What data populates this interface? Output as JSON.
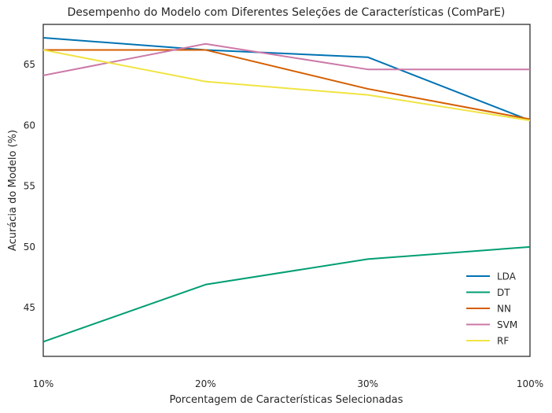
{
  "chart_data": {
    "type": "line",
    "title": "Desempenho do Modelo com Diferentes Seleções de Características (ComParE)",
    "xlabel": "Porcentagem de Características Selecionadas",
    "ylabel": "Acurácia do Modelo (%)",
    "categories": [
      "10%",
      "20%",
      "30%",
      "100%"
    ],
    "ylim": [
      41,
      68.3
    ],
    "yticks": [
      45,
      50,
      55,
      60,
      65
    ],
    "grid": false,
    "legend_position": "lower-right",
    "series": [
      {
        "name": "LDA",
        "color": "#0072b2",
        "values": [
          67.2,
          66.2,
          65.6,
          60.4
        ]
      },
      {
        "name": "DT",
        "color": "#009e73",
        "values": [
          42.2,
          46.9,
          49.0,
          50.0
        ]
      },
      {
        "name": "NN",
        "color": "#d55e00",
        "values": [
          66.2,
          66.2,
          63.0,
          60.5
        ]
      },
      {
        "name": "SVM",
        "color": "#cc79a7",
        "values": [
          64.1,
          66.7,
          64.6,
          64.6
        ]
      },
      {
        "name": "RF",
        "color": "#f0e442",
        "values": [
          66.2,
          63.6,
          62.5,
          60.4
        ]
      }
    ]
  }
}
